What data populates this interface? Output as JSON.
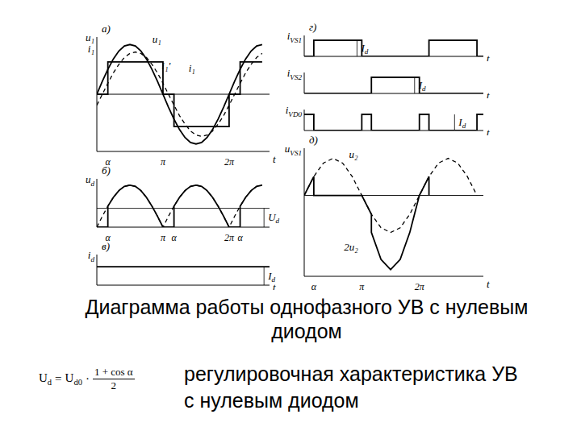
{
  "chart_data": [
    {
      "type": "line",
      "title": "а)",
      "ylabel": "u₁ i₁",
      "xlabel": "t",
      "xlim": [
        0,
        470
      ],
      "ylim": [
        -1.15,
        1.15
      ],
      "tick_labels": "x",
      "xticks": [
        {
          "value": 30,
          "label": "α"
        },
        {
          "value": 180,
          "label": "π"
        },
        {
          "value": 360,
          "label": "2π"
        }
      ],
      "series": [
        {
          "name": "u₁",
          "color": "#000000",
          "line_style": "solid",
          "x": [
            0,
            15,
            30,
            45,
            60,
            75,
            90,
            105,
            120,
            135,
            150,
            165,
            180,
            195,
            210,
            225,
            240,
            255,
            270,
            285,
            300,
            315,
            330,
            345,
            360,
            375,
            390,
            405,
            420,
            435,
            450
          ],
          "values": [
            0,
            0.26,
            0.5,
            0.71,
            0.87,
            0.97,
            1,
            0.97,
            0.87,
            0.71,
            0.5,
            0.26,
            0,
            -0.26,
            -0.5,
            -0.71,
            -0.87,
            -0.97,
            -1,
            -0.97,
            -0.87,
            -0.71,
            -0.5,
            -0.26,
            0,
            0.26,
            0.5,
            0.71,
            0.87,
            0.97,
            1
          ]
        },
        {
          "name": "i₁",
          "color": "#000000",
          "line_style": "solid",
          "type": "step",
          "x": [
            0,
            30,
            180,
            210,
            360,
            390,
            450
          ],
          "values": [
            0,
            0.65,
            0,
            -0.65,
            0,
            0.65,
            0.65
          ]
        },
        {
          "name": "i₁'",
          "color": "#000000",
          "line_style": "dashed",
          "x": [
            0,
            15,
            30,
            45,
            60,
            75,
            90,
            105,
            120,
            135,
            150,
            165,
            180,
            195,
            210,
            225,
            240,
            255,
            270,
            285,
            300,
            315,
            330,
            345,
            360,
            375,
            390,
            405,
            420,
            435,
            450
          ],
          "values": [
            -0.22,
            0,
            0.22,
            0.43,
            0.6,
            0.74,
            0.82,
            0.85,
            0.82,
            0.74,
            0.6,
            0.43,
            0.22,
            0,
            -0.22,
            -0.43,
            -0.6,
            -0.74,
            -0.82,
            -0.85,
            -0.82,
            -0.74,
            -0.6,
            -0.43,
            -0.22,
            0,
            0.22,
            0.43,
            0.6,
            0.74,
            0.82
          ]
        }
      ]
    },
    {
      "type": "line",
      "title": "б)",
      "ylabel": "ud",
      "xlim": [
        0,
        470
      ],
      "ylim": [
        0,
        1.15
      ],
      "tick_labels": "x",
      "xticks": [
        {
          "value": 30,
          "label": "α"
        },
        {
          "value": 180,
          "label": "π"
        },
        {
          "value": 210,
          "label": "α"
        },
        {
          "value": 360,
          "label": "2π"
        },
        {
          "value": 390,
          "label": "α"
        }
      ],
      "reference_lines": [
        {
          "y": 0.45,
          "label": "Ud"
        }
      ],
      "series": [
        {
          "color": "#000000",
          "line_style": "dashed",
          "x": [
            0,
            15,
            30,
            45,
            60,
            75,
            90,
            105,
            120,
            135,
            150,
            165,
            180,
            195,
            210,
            225,
            240,
            255,
            270,
            285,
            300,
            315,
            330,
            345,
            360,
            375,
            390,
            405,
            420,
            435,
            450
          ],
          "values": [
            0,
            0.26,
            0.5,
            0.71,
            0.87,
            0.97,
            1,
            0.97,
            0.87,
            0.71,
            0.5,
            0.26,
            0,
            0.26,
            0.5,
            0.71,
            0.87,
            0.97,
            1,
            0.97,
            0.87,
            0.71,
            0.5,
            0.26,
            0,
            0.26,
            0.5,
            0.71,
            0.87,
            0.97,
            1
          ]
        },
        {
          "color": "#000000",
          "line_style": "solid",
          "x": [
            0,
            30,
            30,
            45,
            60,
            75,
            90,
            105,
            120,
            135,
            150,
            165,
            180,
            210,
            210,
            225,
            240,
            255,
            270,
            285,
            300,
            315,
            330,
            345,
            360,
            390,
            390,
            405,
            420,
            435,
            450
          ],
          "values": [
            0,
            0,
            0.5,
            0.71,
            0.87,
            0.97,
            1,
            0.97,
            0.87,
            0.71,
            0.5,
            0.26,
            0,
            0,
            0.5,
            0.71,
            0.87,
            0.97,
            1,
            0.97,
            0.87,
            0.71,
            0.5,
            0.26,
            0,
            0,
            0.5,
            0.71,
            0.87,
            0.97,
            1
          ]
        }
      ]
    },
    {
      "type": "line",
      "title": "в)",
      "ylabel": "id",
      "xlabel": "t",
      "xlim": [
        0,
        470
      ],
      "ylim": [
        0,
        1
      ],
      "tick_labels": false,
      "amplitude_label": "Id",
      "series": [
        {
          "color": "#000000",
          "line_style": "solid",
          "x": [
            0,
            470
          ],
          "values": [
            0.6,
            0.6
          ]
        }
      ]
    },
    {
      "type": "line",
      "title": "г)",
      "ylabel": "iVS1",
      "xlabel": "t",
      "xlim": [
        0,
        560
      ],
      "ylim": [
        0,
        1.3
      ],
      "tick_labels": false,
      "amplitude_label": "Id",
      "series": [
        {
          "color": "#000000",
          "line_style": "solid",
          "type": "step",
          "x": [
            0,
            30,
            180,
            390,
            540,
            560
          ],
          "values": [
            0,
            1,
            0,
            1,
            0,
            0
          ]
        }
      ]
    },
    {
      "type": "line",
      "ylabel": "iVS2",
      "xlabel": "t",
      "xlim": [
        0,
        560
      ],
      "ylim": [
        0,
        1.3
      ],
      "tick_labels": false,
      "amplitude_label": "Id",
      "series": [
        {
          "color": "#000000",
          "line_style": "solid",
          "type": "step",
          "x": [
            0,
            210,
            360,
            560
          ],
          "values": [
            0,
            1,
            0,
            0
          ]
        }
      ]
    },
    {
      "type": "line",
      "ylabel": "iVD0",
      "xlabel": "t",
      "xlim": [
        0,
        560
      ],
      "ylim": [
        0,
        1.3
      ],
      "tick_labels": false,
      "amplitude_label": "Id",
      "series": [
        {
          "color": "#000000",
          "line_style": "solid",
          "type": "step",
          "x": [
            0,
            30,
            180,
            210,
            360,
            390,
            540,
            560
          ],
          "values": [
            1,
            0,
            1,
            0,
            1,
            0,
            1,
            1
          ]
        }
      ]
    },
    {
      "type": "line",
      "title": "д)",
      "ylabel": "uVS1",
      "xlabel": "t",
      "xlim": [
        0,
        560
      ],
      "ylim": [
        -1.2,
        0.7
      ],
      "tick_labels": "x",
      "xticks": [
        {
          "value": 30,
          "label": "α"
        },
        {
          "value": 180,
          "label": "π"
        },
        {
          "value": 360,
          "label": "2π"
        }
      ],
      "series": [
        {
          "name": "u₂",
          "color": "#000000",
          "line_style": "dashed",
          "x": [
            0,
            30,
            60,
            90,
            120,
            150,
            180,
            210,
            240,
            270,
            300,
            330,
            360,
            390,
            420,
            450,
            480,
            510,
            540
          ],
          "values": [
            0,
            0.28,
            0.48,
            0.55,
            0.48,
            0.28,
            0,
            -0.28,
            -0.48,
            -0.55,
            -0.48,
            -0.28,
            0,
            0.28,
            0.48,
            0.55,
            0.48,
            0.28,
            0
          ]
        },
        {
          "name": "2u₂",
          "color": "#000000",
          "line_style": "solid",
          "x": [
            0,
            15,
            30,
            30,
            180,
            195,
            210,
            210,
            240,
            270,
            300,
            330,
            360,
            375,
            390,
            390
          ],
          "values": [
            0,
            0.14,
            0.28,
            0,
            0,
            -0.14,
            -0.28,
            -0.55,
            -0.95,
            -1.1,
            -0.95,
            -0.55,
            0,
            0.14,
            0.28,
            0
          ]
        }
      ]
    }
  ],
  "caption": [
    "Диаграмма работы однофазного УВ с нулевым",
    "диодом"
  ],
  "formula": {
    "lhs": "Ud",
    "operator": "=",
    "rhs": "Ud0",
    "times": "·",
    "numerator": "1 + cos α",
    "denominator": "2"
  },
  "formula_caption": [
    "регулировочная характеристика УВ",
    "с нулевым диодом"
  ]
}
